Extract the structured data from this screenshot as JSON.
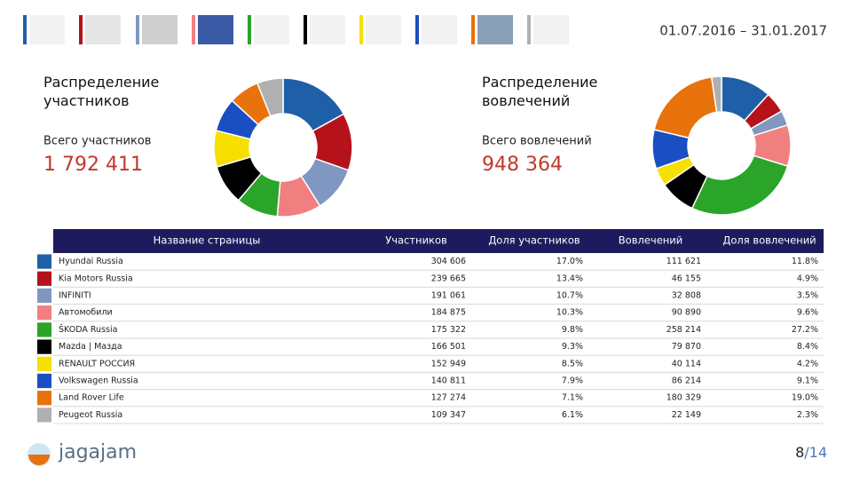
{
  "header": {
    "period": "01.07.2016 – 31.01.2017"
  },
  "chart_data": [
    {
      "type": "donut",
      "title": "Распределение участников",
      "total_label": "Всего участников",
      "total": "1 792 411",
      "values": [
        17.0,
        13.4,
        10.7,
        10.3,
        9.8,
        9.3,
        8.5,
        7.9,
        7.1,
        6.1
      ],
      "colors": [
        "#1f5fa8",
        "#b5121b",
        "#7f97c1",
        "#f08080",
        "#2aa52a",
        "#000000",
        "#f5e000",
        "#1a4fc4",
        "#e8720c",
        "#b0b0b0"
      ]
    },
    {
      "type": "donut",
      "title": "Распределение вовлечений",
      "total_label": "Всего вовлечений",
      "total": "948 364",
      "values": [
        11.8,
        4.9,
        3.5,
        9.6,
        27.2,
        8.4,
        4.2,
        9.1,
        19.0,
        2.3
      ],
      "colors": [
        "#1f5fa8",
        "#b5121b",
        "#7f97c1",
        "#f08080",
        "#2aa52a",
        "#000000",
        "#f5e000",
        "#1a4fc4",
        "#e8720c",
        "#b0b0b0"
      ]
    }
  ],
  "table": {
    "columns": [
      "Название страницы",
      "Участников",
      "Доля участников",
      "Вовлечений",
      "Доля вовлечений"
    ],
    "rows": [
      [
        "Hyundai Russia",
        "304 606",
        "17.0%",
        "111 621",
        "11.8%"
      ],
      [
        "Kia Motors Russia",
        "239 665",
        "13.4%",
        "46 155",
        "4.9%"
      ],
      [
        "INFINITI",
        "191 061",
        "10.7%",
        "32 808",
        "3.5%"
      ],
      [
        "Автомобили",
        "184 875",
        "10.3%",
        "90 890",
        "9.6%"
      ],
      [
        "ŠKODA Russia",
        "175 322",
        "9.8%",
        "258 214",
        "27.2%"
      ],
      [
        "Mazda | Мазда",
        "166 501",
        "9.3%",
        "79 870",
        "8.4%"
      ],
      [
        "RENAULT РОССИЯ",
        "152 949",
        "8.5%",
        "40 114",
        "4.2%"
      ],
      [
        "Volkswagen Russia",
        "140 811",
        "7.9%",
        "86 214",
        "9.1%"
      ],
      [
        "Land Rover Life",
        "127 274",
        "7.1%",
        "180 329",
        "19.0%"
      ],
      [
        "Peugeot Russia",
        "109 347",
        "6.1%",
        "22 149",
        "2.3%"
      ]
    ]
  },
  "footer": {
    "logo": "jagajam",
    "page_current": "8",
    "page_total": "/14"
  }
}
